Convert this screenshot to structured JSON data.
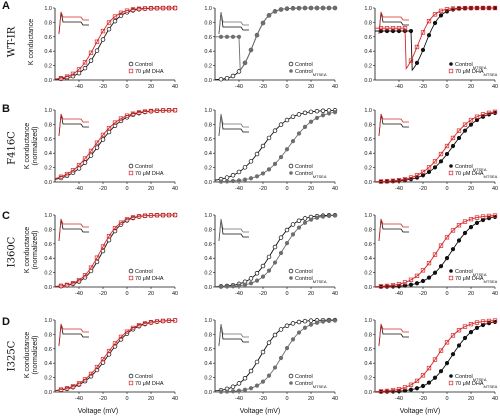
{
  "axis_labels": {
    "y_top": "K conductance",
    "y_bottom": "(normalized)",
    "x": "Voltage (mV)"
  },
  "rows": [
    {
      "letter": "A",
      "label": "WT-IR"
    },
    {
      "letter": "B",
      "label": "F416C"
    },
    {
      "letter": "C",
      "label": "I360C"
    },
    {
      "letter": "D",
      "label": "I325C"
    }
  ],
  "colors": {
    "control": "#111111",
    "dha": "#d62728",
    "mtsea": "#6e6e6e",
    "axis": "#111111"
  },
  "chart_data": [
    {
      "type": "line",
      "id": "A1",
      "xlim": [
        -60,
        40
      ],
      "ylim": [
        0,
        1
      ],
      "xticks": [
        -40,
        -20,
        0,
        20,
        40
      ],
      "yticks": [
        0.0,
        0.2,
        0.4,
        0.6,
        0.8,
        1.0
      ],
      "series": [
        {
          "name": "Control",
          "marker": "circle",
          "color": "black",
          "v_half": -22,
          "slope": 8
        },
        {
          "name": "70 μM DHA",
          "marker": "square",
          "color": "red",
          "v_half": -26,
          "slope": 8
        }
      ]
    },
    {
      "type": "line",
      "id": "A2",
      "xlim": [
        -60,
        40
      ],
      "ylim": [
        0,
        1
      ],
      "xticks": [
        -40,
        -20,
        0,
        20,
        40
      ],
      "yticks": [
        0.0,
        0.2,
        0.4,
        0.6,
        0.8,
        1.0
      ],
      "series": [
        {
          "name": "Control",
          "marker": "circle",
          "color": "black",
          "v_half": -28,
          "slope": 6
        },
        {
          "name": "Control_MTSEA",
          "marker": "circle-filled",
          "color": "gray",
          "v_half": -28,
          "slope": 6,
          "baseline": 0.6,
          "baseline_end": -40
        }
      ]
    },
    {
      "type": "line",
      "id": "A3",
      "xlim": [
        -60,
        40
      ],
      "ylim": [
        0,
        1
      ],
      "xticks": [
        -40,
        -20,
        0,
        20,
        40
      ],
      "yticks": [
        0.0,
        0.2,
        0.4,
        0.6,
        0.8,
        1.0
      ],
      "series": [
        {
          "name": "Control_MTSEA",
          "marker": "circle-filled",
          "color": "black",
          "v_half": -18,
          "slope": 6,
          "baseline": 0.68,
          "baseline_end": -30
        },
        {
          "name": "70 μM DHA_MTSEA",
          "marker": "square",
          "color": "red",
          "v_half": -24,
          "slope": 6,
          "baseline": 0.72,
          "baseline_end": -35
        }
      ]
    },
    {
      "type": "line",
      "id": "B1",
      "xlim": [
        -60,
        40
      ],
      "ylim": [
        0,
        1
      ],
      "xticks": [
        -40,
        -20,
        0,
        20,
        40
      ],
      "yticks": [
        0.0,
        0.2,
        0.4,
        0.6,
        0.8,
        1.0
      ],
      "series": [
        {
          "name": "Control",
          "marker": "circle",
          "color": "black",
          "v_half": -24,
          "slope": 11
        },
        {
          "name": "70 μM DHA",
          "marker": "square",
          "color": "red",
          "v_half": -27,
          "slope": 11
        }
      ]
    },
    {
      "type": "line",
      "id": "B2",
      "xlim": [
        -60,
        40
      ],
      "ylim": [
        0,
        1
      ],
      "xticks": [
        -40,
        -20,
        0,
        20,
        40
      ],
      "yticks": [
        0.0,
        0.2,
        0.4,
        0.6,
        0.8,
        1.0
      ],
      "series": [
        {
          "name": "Control",
          "marker": "circle",
          "color": "black",
          "v_half": -20,
          "slope": 11
        },
        {
          "name": "Control_MTSEA",
          "marker": "circle-filled",
          "color": "gray",
          "v_half": 2,
          "slope": 11
        }
      ]
    },
    {
      "type": "line",
      "id": "B3",
      "xlim": [
        -60,
        40
      ],
      "ylim": [
        0,
        1
      ],
      "xticks": [
        -40,
        -20,
        0,
        20,
        40
      ],
      "yticks": [
        0.0,
        0.2,
        0.4,
        0.6,
        0.8,
        1.0
      ],
      "series": [
        {
          "name": "Control_MTSEA",
          "marker": "circle-filled",
          "color": "black",
          "v_half": 5,
          "slope": 11
        },
        {
          "name": "70 μM DHA_MTSEA",
          "marker": "square",
          "color": "red",
          "v_half": 0,
          "slope": 11
        }
      ]
    },
    {
      "type": "line",
      "id": "C1",
      "xlim": [
        -60,
        40
      ],
      "ylim": [
        0,
        1
      ],
      "xticks": [
        -40,
        -20,
        0,
        20,
        40
      ],
      "yticks": [
        0.0,
        0.2,
        0.4,
        0.6,
        0.8,
        1.0
      ],
      "series": [
        {
          "name": "Control",
          "marker": "circle",
          "color": "black",
          "v_half": -20,
          "slope": 8
        },
        {
          "name": "70 μM DHA",
          "marker": "square",
          "color": "red",
          "v_half": -22,
          "slope": 8
        }
      ]
    },
    {
      "type": "line",
      "id": "C2",
      "xlim": [
        -60,
        40
      ],
      "ylim": [
        0,
        1
      ],
      "xticks": [
        -40,
        -20,
        0,
        20,
        40
      ],
      "yticks": [
        0.0,
        0.2,
        0.4,
        0.6,
        0.8,
        1.0
      ],
      "series": [
        {
          "name": "Control",
          "marker": "circle",
          "color": "black",
          "v_half": -12,
          "slope": 9
        },
        {
          "name": "Control_MTSEA",
          "marker": "circle-filled",
          "color": "gray",
          "v_half": -4,
          "slope": 9
        }
      ]
    },
    {
      "type": "line",
      "id": "C3",
      "xlim": [
        -60,
        40
      ],
      "ylim": [
        0,
        1
      ],
      "xticks": [
        -40,
        -20,
        0,
        20,
        40
      ],
      "yticks": [
        0.0,
        0.2,
        0.4,
        0.6,
        0.8,
        1.0
      ],
      "series": [
        {
          "name": "Control_MTSEA",
          "marker": "circle-filled",
          "color": "black",
          "v_half": 4,
          "slope": 10
        },
        {
          "name": "70 μM DHA_MTSEA",
          "marker": "square",
          "color": "red",
          "v_half": -8,
          "slope": 10
        }
      ]
    },
    {
      "type": "line",
      "id": "D1",
      "xlim": [
        -60,
        40
      ],
      "ylim": [
        0,
        1
      ],
      "xticks": [
        -40,
        -20,
        0,
        20,
        40
      ],
      "yticks": [
        0.0,
        0.2,
        0.4,
        0.6,
        0.8,
        1.0
      ],
      "series": [
        {
          "name": "Control",
          "marker": "circle",
          "color": "black",
          "v_half": -16,
          "slope": 11
        },
        {
          "name": "70 μM DHA",
          "marker": "square",
          "color": "red",
          "v_half": -18,
          "slope": 11
        }
      ]
    },
    {
      "type": "line",
      "id": "D2",
      "xlim": [
        -60,
        40
      ],
      "ylim": [
        0,
        1
      ],
      "xticks": [
        -40,
        -20,
        0,
        20,
        40
      ],
      "yticks": [
        0.0,
        0.2,
        0.4,
        0.6,
        0.8,
        1.0
      ],
      "series": [
        {
          "name": "Control",
          "marker": "circle",
          "color": "black",
          "v_half": -22,
          "slope": 9
        },
        {
          "name": "Control_MTSEA",
          "marker": "circle-filled",
          "color": "gray",
          "v_half": -4,
          "slope": 9
        }
      ]
    },
    {
      "type": "line",
      "id": "D3",
      "xlim": [
        -60,
        40
      ],
      "ylim": [
        0,
        1
      ],
      "xticks": [
        -40,
        -20,
        0,
        20,
        40
      ],
      "yticks": [
        0.0,
        0.2,
        0.4,
        0.6,
        0.8,
        1.0
      ],
      "series": [
        {
          "name": "Control_MTSEA",
          "marker": "circle-filled",
          "color": "black",
          "v_half": 4,
          "slope": 10
        },
        {
          "name": "70 μM DHA_MTSEA",
          "marker": "square",
          "color": "red",
          "v_half": -8,
          "slope": 10
        }
      ]
    }
  ]
}
